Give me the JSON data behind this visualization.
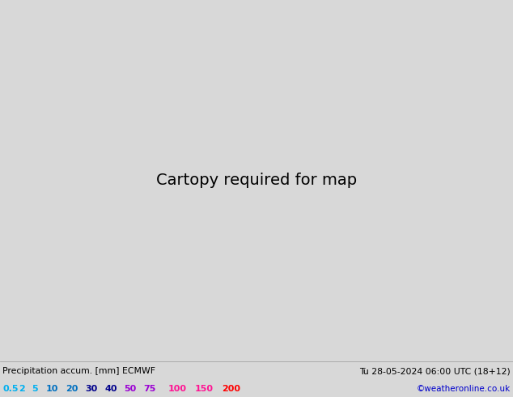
{
  "title_left": "Precipitation accum. [mm] ECMWF",
  "title_right": "Tu 28-05-2024 06:00 UTC (18+12)",
  "credit": "©weatheronline.co.uk",
  "colorbar_values": [
    "0.5",
    "2",
    "5",
    "10",
    "20",
    "30",
    "40",
    "50",
    "75",
    "100",
    "150",
    "200"
  ],
  "scale_colors": [
    "#00b0f0",
    "#00b0f0",
    "#00b0f0",
    "#0070c0",
    "#0070c0",
    "#00008b",
    "#00008b",
    "#9b00d3",
    "#9b00d3",
    "#ff1493",
    "#ff1493",
    "#ff0000"
  ],
  "bottom_bar_color": "#c8ffc8",
  "land_color": "#aade87",
  "sea_color": "#d8d8d8",
  "precip_light_color": "#aadcf5",
  "precip_medium_color": "#55b8f0",
  "precip_dark_color": "#1e90ff",
  "border_color": "#404040",
  "fig_width": 6.34,
  "fig_height": 4.9,
  "dpi": 100,
  "extent": [
    0,
    40,
    50,
    75
  ],
  "map_extent_lon_min": 0,
  "map_extent_lon_max": 40,
  "map_extent_lat_min": 50,
  "map_extent_lat_max": 75
}
